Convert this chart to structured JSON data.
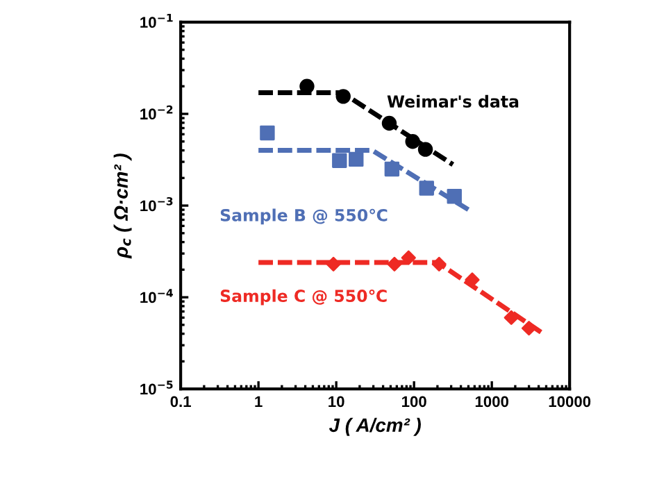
{
  "chart_data": {
    "type": "scatter",
    "xlabel": "J ( A/cm² )",
    "ylabel": "ρ$_{c}$ ( Ω·cm² )",
    "log": "xy",
    "xlim": [
      0.1,
      10000
    ],
    "ylim": [
      1e-05,
      0.1
    ],
    "xticks": [
      0.1,
      1,
      10,
      100,
      1000,
      10000
    ],
    "yticks": [
      {
        "value": 1e-05,
        "label": "10$^{−5}$"
      },
      {
        "value": 0.0001,
        "label": "10$^{−4}$"
      },
      {
        "value": 0.001,
        "label": "10$^{−3}$"
      },
      {
        "value": 0.01,
        "label": "10$^{−2}$"
      },
      {
        "value": 0.1,
        "label": "10$^{−1}$"
      }
    ],
    "grid": false,
    "legend": false,
    "series": [
      {
        "name": "Weimar's data",
        "marker": "circle",
        "color": "#000000",
        "x": [
          4.2,
          12.3,
          48,
          96,
          140
        ],
        "values": [
          0.02,
          0.0155,
          0.0079,
          0.005,
          0.0041
        ]
      },
      {
        "name": "Sample B @ 550℃",
        "marker": "square",
        "color": "#4f6fb5",
        "x": [
          1.3,
          11,
          18,
          52,
          145,
          330
        ],
        "values": [
          0.0062,
          0.0031,
          0.0032,
          0.0025,
          0.00155,
          0.00126
        ]
      },
      {
        "name": "Sample C @ 550℃",
        "marker": "diamond",
        "color": "#ee2a24",
        "x": [
          9.2,
          56,
          85,
          210,
          560,
          1780,
          3000
        ],
        "values": [
          0.00023,
          0.00023,
          0.00027,
          0.00023,
          0.000155,
          6e-05,
          4.6e-05
        ]
      },
      {
        "type": "line",
        "line_style": "dashed",
        "marker": "none",
        "color": "#000000",
        "x": [
          1,
          12,
          316
        ],
        "values": [
          0.017,
          0.017,
          0.0028
        ]
      },
      {
        "type": "line",
        "line_style": "dashed",
        "marker": "none",
        "color": "#4f6fb5",
        "x": [
          1,
          29,
          560
        ],
        "values": [
          0.004,
          0.004,
          0.00085
        ]
      },
      {
        "type": "line",
        "line_style": "dashed",
        "marker": "none",
        "color": "#ee2a24",
        "x": [
          1,
          200,
          4400
        ],
        "values": [
          0.00024,
          0.00024,
          4.1e-05
        ]
      }
    ]
  }
}
